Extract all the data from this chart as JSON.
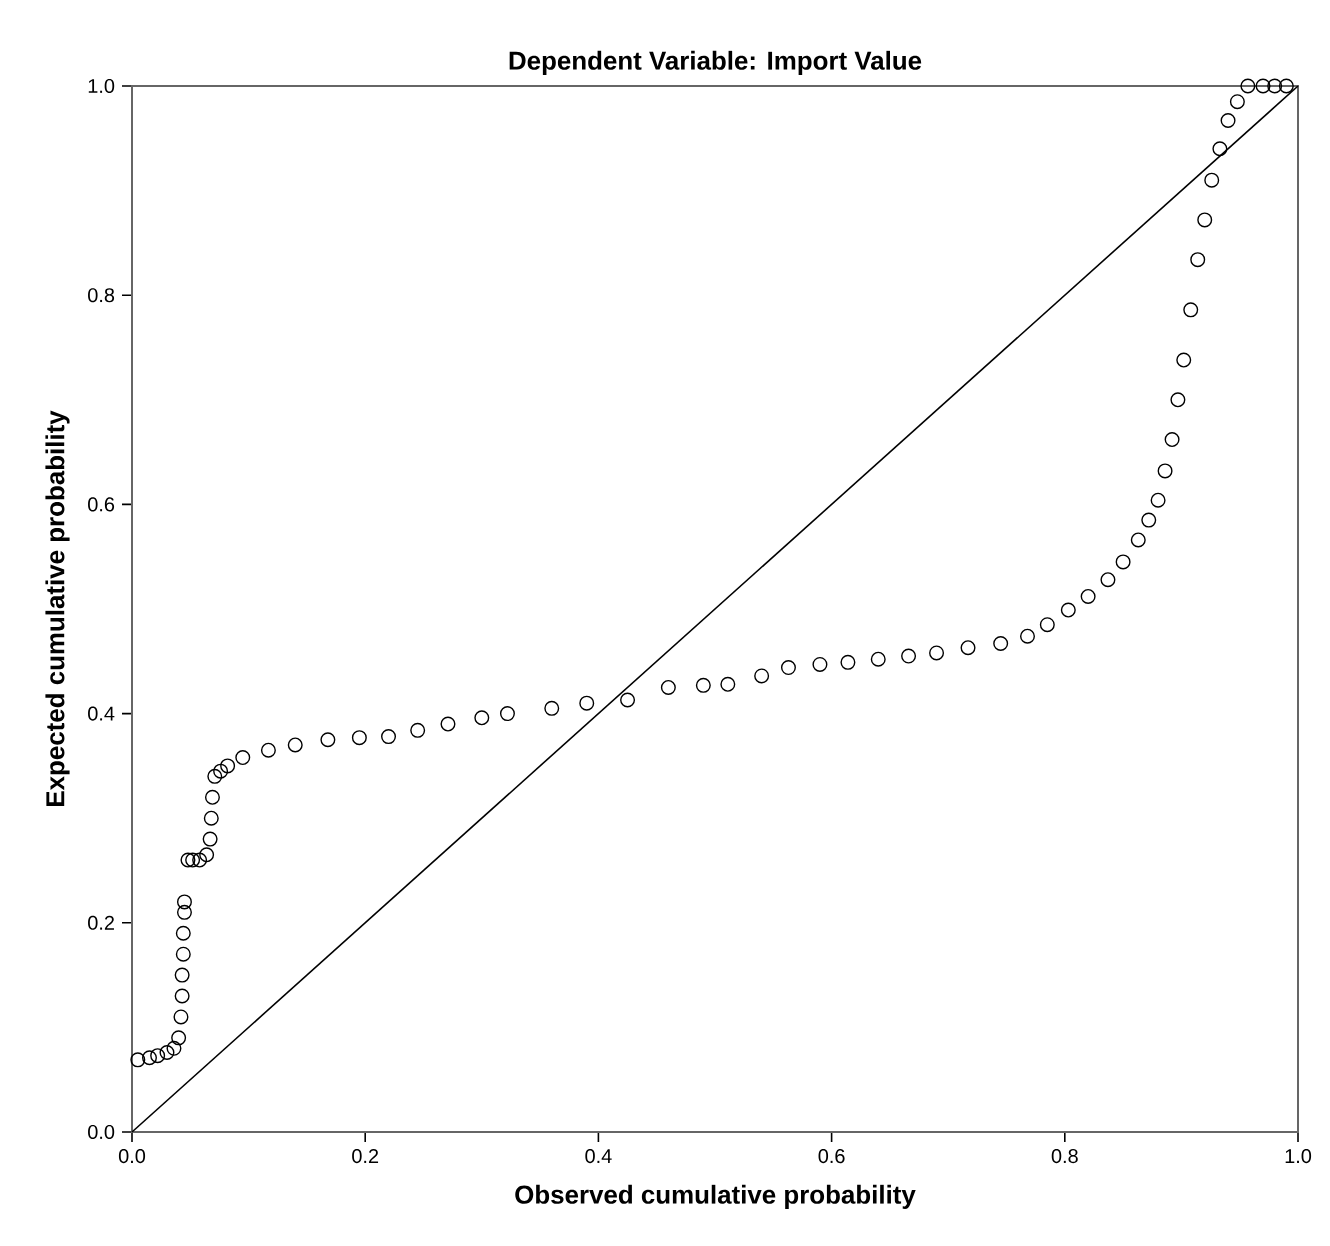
{
  "chart_data": {
    "type": "scatter",
    "title": "Dependent Variable: Import Value",
    "xlabel": "Observed cumulative probability",
    "ylabel": "Expected cumulative probability",
    "xlim": [
      0,
      1
    ],
    "ylim": [
      0,
      1
    ],
    "xticks": [
      {
        "value": 0,
        "label": "0.0"
      },
      {
        "value": 0.2,
        "label": "0.2"
      },
      {
        "value": 0.4,
        "label": "0.4"
      },
      {
        "value": 0.6,
        "label": "0.6"
      },
      {
        "value": 0.8,
        "label": "0.8"
      },
      {
        "value": 1,
        "label": "1.0"
      }
    ],
    "yticks": [
      {
        "value": 0,
        "label": "0.0"
      },
      {
        "value": 0.2,
        "label": "0.2"
      },
      {
        "value": 0.4,
        "label": "0.4"
      },
      {
        "value": 0.6,
        "label": "0.6"
      },
      {
        "value": 0.8,
        "label": "0.8"
      },
      {
        "value": 1,
        "label": "1.0"
      }
    ],
    "series": [
      {
        "marker": "circle",
        "color": "#000000",
        "x": [
          0.005,
          0.015,
          0.022,
          0.03,
          0.036,
          0.04,
          0.042,
          0.043,
          0.043,
          0.044,
          0.044,
          0.045,
          0.045,
          0.048,
          0.052,
          0.058,
          0.064,
          0.067,
          0.068,
          0.069,
          0.071,
          0.076,
          0.082,
          0.095,
          0.117,
          0.14,
          0.168,
          0.195,
          0.22,
          0.245,
          0.271,
          0.3,
          0.322,
          0.36,
          0.39,
          0.425,
          0.46,
          0.49,
          0.511,
          0.54,
          0.563,
          0.59,
          0.614,
          0.64,
          0.666,
          0.69,
          0.717,
          0.745,
          0.768,
          0.785,
          0.803,
          0.82,
          0.837,
          0.85,
          0.863,
          0.872,
          0.88,
          0.886,
          0.892,
          0.897,
          0.902,
          0.908,
          0.914,
          0.92,
          0.926,
          0.933,
          0.94,
          0.948,
          0.957,
          0.97,
          0.98,
          0.99
        ],
        "values": [
          0.069,
          0.071,
          0.073,
          0.076,
          0.08,
          0.09,
          0.11,
          0.13,
          0.15,
          0.17,
          0.19,
          0.21,
          0.22,
          0.26,
          0.26,
          0.26,
          0.265,
          0.28,
          0.3,
          0.32,
          0.34,
          0.345,
          0.35,
          0.358,
          0.365,
          0.37,
          0.375,
          0.377,
          0.378,
          0.384,
          0.39,
          0.396,
          0.4,
          0.405,
          0.41,
          0.413,
          0.425,
          0.427,
          0.428,
          0.436,
          0.444,
          0.447,
          0.449,
          0.452,
          0.455,
          0.458,
          0.463,
          0.467,
          0.474,
          0.485,
          0.499,
          0.512,
          0.528,
          0.545,
          0.566,
          0.585,
          0.604,
          0.632,
          0.662,
          0.7,
          0.738,
          0.786,
          0.834,
          0.872,
          0.91,
          0.94,
          0.967,
          0.985,
          1.0,
          1.0,
          1.0,
          1.0
        ]
      },
      {
        "type": "line",
        "marker": "none",
        "color": "#000000",
        "x": [
          0,
          1
        ],
        "values": [
          0,
          1
        ]
      }
    ]
  }
}
